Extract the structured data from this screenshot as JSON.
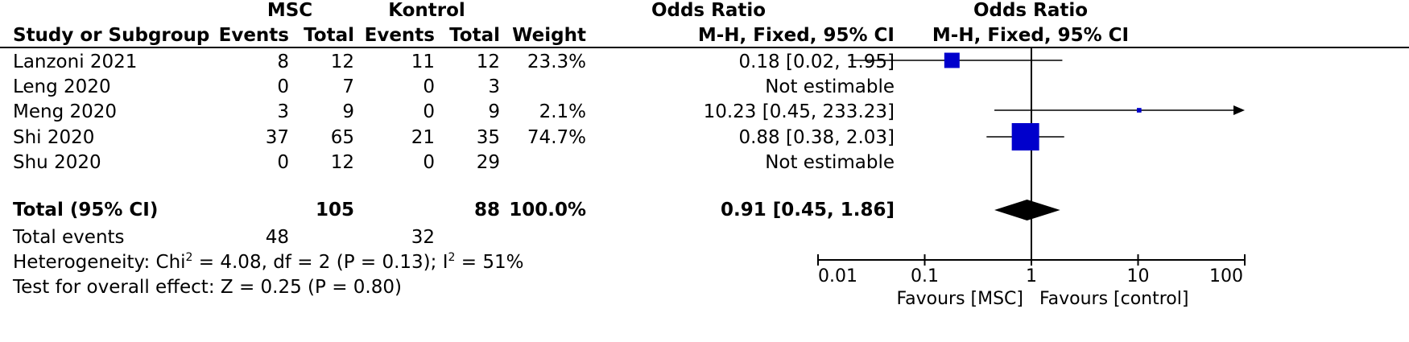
{
  "header": {
    "group1": "MSC",
    "group2": "Kontrol",
    "study_col": "Study or Subgroup",
    "events": "Events",
    "total": "Total",
    "weight": "Weight",
    "or_title": "Odds Ratio",
    "or_method": "M-H, Fixed, 95% CI",
    "plot_title": "Odds Ratio",
    "plot_method": "M-H, Fixed, 95% CI"
  },
  "studies": [
    {
      "name": "Lanzoni 2021",
      "e1": "8",
      "t1": "12",
      "e2": "11",
      "t2": "12",
      "weight": "23.3%",
      "ci": "0.18 [0.02, 1.95]"
    },
    {
      "name": "Leng 2020",
      "e1": "0",
      "t1": "7",
      "e2": "0",
      "t2": "3",
      "weight": "",
      "ci": "Not estimable"
    },
    {
      "name": "Meng 2020",
      "e1": "3",
      "t1": "9",
      "e2": "0",
      "t2": "9",
      "weight": "2.1%",
      "ci": "10.23 [0.45, 233.23]"
    },
    {
      "name": "Shi 2020",
      "e1": "37",
      "t1": "65",
      "e2": "21",
      "t2": "35",
      "weight": "74.7%",
      "ci": "0.88 [0.38, 2.03]"
    },
    {
      "name": "Shu 2020",
      "e1": "0",
      "t1": "12",
      "e2": "0",
      "t2": "29",
      "weight": "",
      "ci": "Not estimable"
    }
  ],
  "total": {
    "label": "Total (95% CI)",
    "t1": "105",
    "t2": "88",
    "weight": "100.0%",
    "ci": "0.91 [0.45, 1.86]"
  },
  "total_events": {
    "label": "Total events",
    "e1": "48",
    "e2": "32"
  },
  "heterogeneity": {
    "prefix": "Heterogeneity: Chi",
    "middle": " = 4.08, df = 2 (P = 0.13); I",
    "suffix": " = 51%",
    "sup": "2"
  },
  "overall_effect": "Test for overall effect: Z = 0.25 (P = 0.80)",
  "axis": {
    "ticks": [
      "0.01",
      "0.1",
      "1",
      "10",
      "100"
    ],
    "favours_left": "Favours [MSC]",
    "favours_right": "Favours [control]"
  },
  "colors": {
    "marker": "#0000cc",
    "diamond": "#000000"
  },
  "chart_data": {
    "type": "forest",
    "title": "Odds Ratio",
    "subtitle": "M-H, Fixed, 95% CI",
    "scale": "log",
    "xlim": [
      0.01,
      100
    ],
    "null_line": 1,
    "x_ticks": [
      0.01,
      0.1,
      1,
      10,
      100
    ],
    "studies": [
      {
        "name": "Lanzoni 2021",
        "or": 0.18,
        "lower": 0.02,
        "upper": 1.95,
        "weight": 23.3
      },
      {
        "name": "Leng 2020",
        "or": null,
        "lower": null,
        "upper": null,
        "weight": null
      },
      {
        "name": "Meng 2020",
        "or": 10.23,
        "lower": 0.45,
        "upper": 233.23,
        "weight": 2.1
      },
      {
        "name": "Shi 2020",
        "or": 0.88,
        "lower": 0.38,
        "upper": 2.03,
        "weight": 74.7
      },
      {
        "name": "Shu 2020",
        "or": null,
        "lower": null,
        "upper": null,
        "weight": null
      }
    ],
    "pooled": {
      "or": 0.91,
      "lower": 0.45,
      "upper": 1.86,
      "weight": 100.0
    }
  }
}
